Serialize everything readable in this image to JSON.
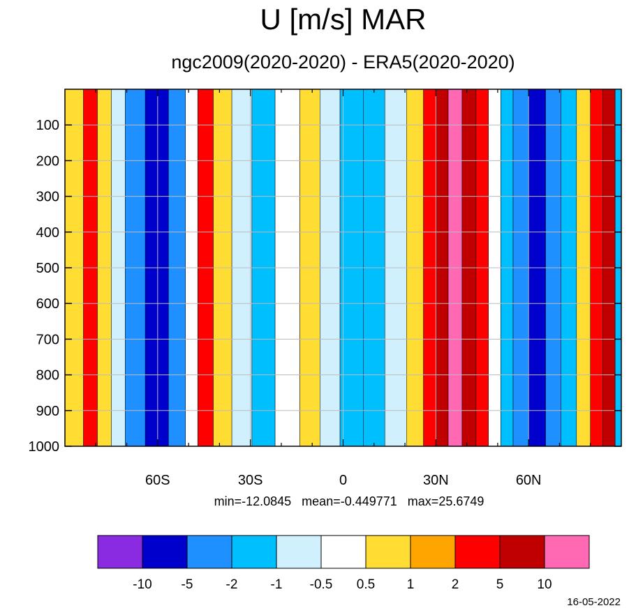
{
  "chart_data": {
    "type": "heatmap",
    "title": "U [m/s] MAR",
    "subtitle": "ngc2009(2020-2020) - ERA5(2020-2020)",
    "x": {
      "range": [
        -90,
        90
      ],
      "ticks": [
        {
          "value": -60,
          "label": "60S"
        },
        {
          "value": -30,
          "label": "30S"
        },
        {
          "value": 0,
          "label": "0"
        },
        {
          "value": 30,
          "label": "30N"
        },
        {
          "value": 60,
          "label": "60N"
        }
      ],
      "minor_step": 10
    },
    "y": {
      "range": [
        1000,
        0
      ],
      "ticks": [
        100,
        200,
        300,
        400,
        500,
        600,
        700,
        800,
        900,
        1000
      ]
    },
    "grid": true,
    "stats": {
      "min": "-12.0845",
      "mean": "-0.449771",
      "max": "25.6749"
    },
    "colorbar": {
      "position": "bottom",
      "levels": [
        "-10",
        "-5",
        "-2",
        "-1",
        "-0.5",
        "0.5",
        "1",
        "2",
        "5",
        "10"
      ],
      "colors": [
        "#8a2be2",
        "#0000cd",
        "#1e90ff",
        "#00bfff",
        "#d0f0fd",
        "#ffffff",
        "#ffdd33",
        "#ffa500",
        "#ff0000",
        "#c00000",
        "#ff69b4"
      ]
    },
    "bands": [
      {
        "lat": -86,
        "value": 0.8
      },
      {
        "lat": -82,
        "value": 2.0
      },
      {
        "lat": -77,
        "value": 0.8
      },
      {
        "lat": -73,
        "value": -0.7
      },
      {
        "lat": -68,
        "value": -2.5
      },
      {
        "lat": -60,
        "value": -6.0
      },
      {
        "lat": -53,
        "value": -2.5
      },
      {
        "lat": -49,
        "value": -0.3
      },
      {
        "lat": -45,
        "value": 2.5
      },
      {
        "lat": -39,
        "value": 0.8
      },
      {
        "lat": -33,
        "value": -0.7
      },
      {
        "lat": -26,
        "value": -1.5
      },
      {
        "lat": -18,
        "value": 0.0
      },
      {
        "lat": -10,
        "value": 0.7
      },
      {
        "lat": -5,
        "value": -0.7
      },
      {
        "lat": 3,
        "value": -1.5
      },
      {
        "lat": 10,
        "value": -1.2
      },
      {
        "lat": 17,
        "value": -0.7
      },
      {
        "lat": 24,
        "value": 0.8
      },
      {
        "lat": 28,
        "value": 2.5
      },
      {
        "lat": 32,
        "value": 5.5
      },
      {
        "lat": 36,
        "value": 11.0
      },
      {
        "lat": 41,
        "value": 5.5
      },
      {
        "lat": 45,
        "value": 2.5
      },
      {
        "lat": 49,
        "value": 0.0
      },
      {
        "lat": 53,
        "value": -1.5
      },
      {
        "lat": 57,
        "value": -2.5
      },
      {
        "lat": 63,
        "value": -6.0
      },
      {
        "lat": 68,
        "value": -3.0
      },
      {
        "lat": 73,
        "value": -1.2
      },
      {
        "lat": 78,
        "value": 0.8
      },
      {
        "lat": 82,
        "value": 2.5
      },
      {
        "lat": 86,
        "value": 6.0
      },
      {
        "lat": 90,
        "value": -1.5
      }
    ]
  },
  "footer": {
    "date": "16-05-2022"
  }
}
